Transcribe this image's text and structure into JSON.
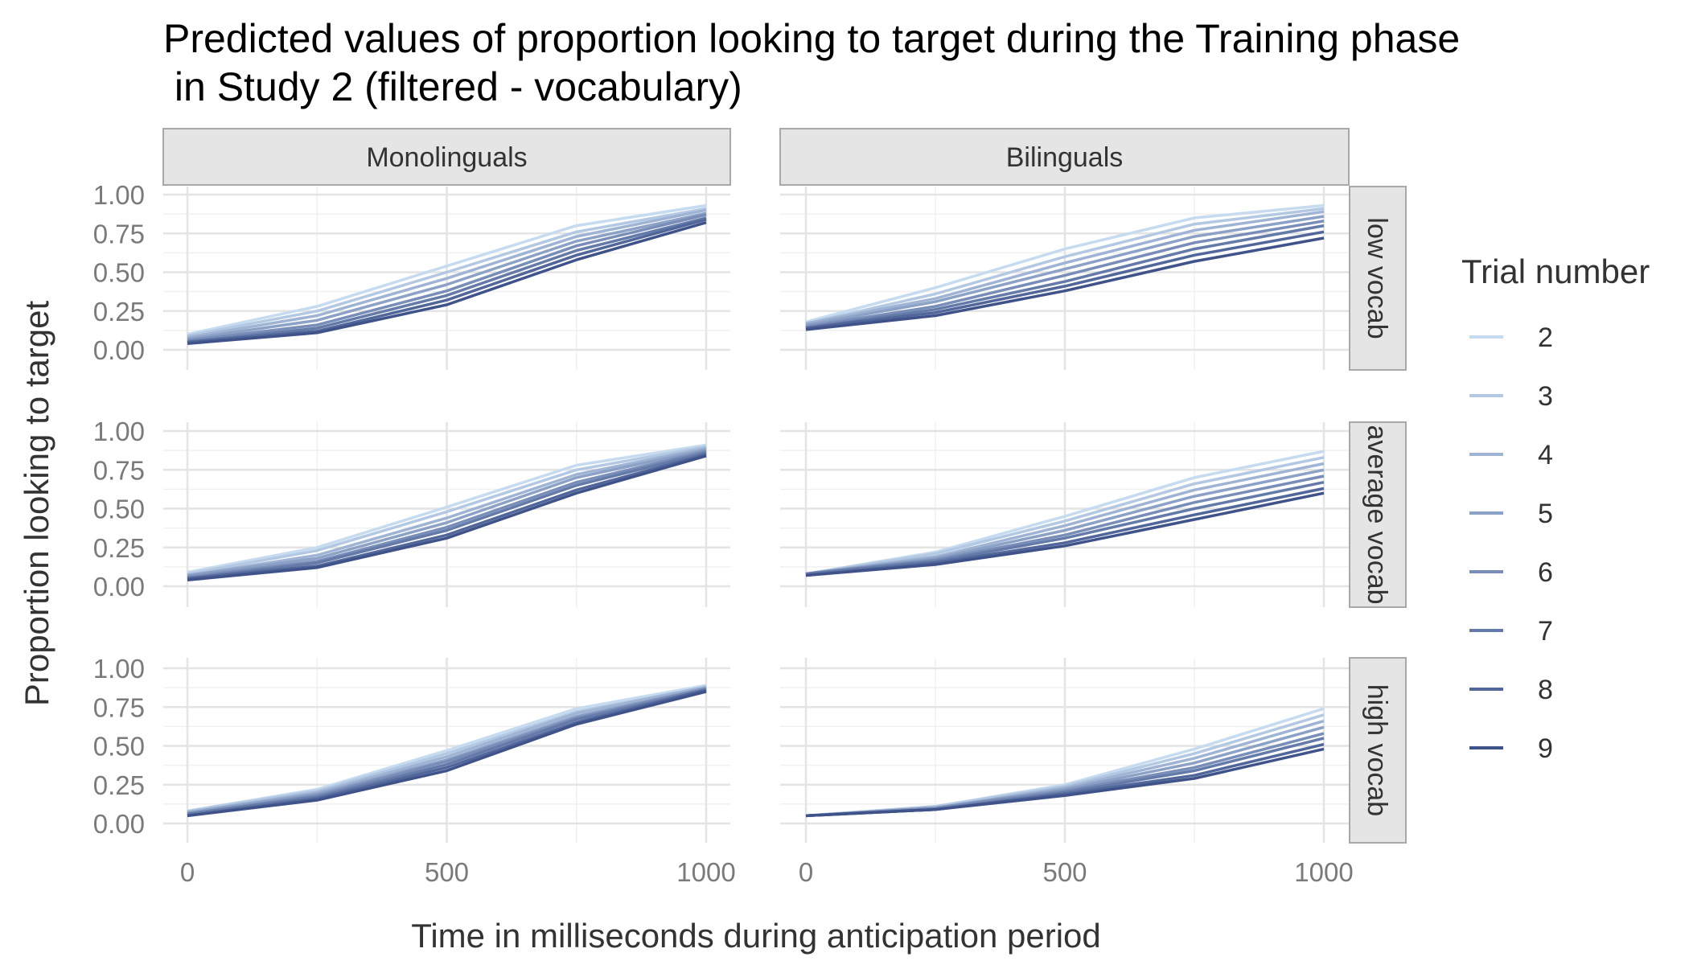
{
  "chart_data": {
    "type": "line",
    "title": "Predicted values of proportion looking to target during the Training phase\n in Study 2 (filtered - vocabulary)",
    "xlabel": "Time in milliseconds during anticipation period",
    "ylabel": "Proportion looking to target",
    "xlim": [
      0,
      1000
    ],
    "ylim": [
      0,
      1
    ],
    "x_ticks": [
      "0",
      "500",
      "1000"
    ],
    "y_ticks": [
      "0.00",
      "0.25",
      "0.50",
      "0.75",
      "1.00"
    ],
    "grid": true,
    "legend": {
      "title": "Trial number",
      "position": "right",
      "entries": [
        "2",
        "3",
        "4",
        "5",
        "6",
        "7",
        "8",
        "9"
      ],
      "colors": [
        "#c6dbef",
        "#b3c8e2",
        "#9fb4d4",
        "#8ca1c6",
        "#788db8",
        "#647aa9",
        "#51669a",
        "#3f538a"
      ]
    },
    "columns": [
      "Monolinguals",
      "Bilinguals"
    ],
    "rows": [
      "low vocab",
      "average vocab",
      "high vocab"
    ],
    "x": [
      0,
      250,
      500,
      750,
      1000
    ],
    "panels": [
      {
        "column": "Monolinguals",
        "row": "low vocab",
        "series": [
          {
            "name": "2",
            "values": [
              0.1,
              0.28,
              0.54,
              0.8,
              0.93
            ]
          },
          {
            "name": "3",
            "values": [
              0.09,
              0.25,
              0.5,
              0.76,
              0.91
            ]
          },
          {
            "name": "4",
            "values": [
              0.08,
              0.22,
              0.46,
              0.73,
              0.9
            ]
          },
          {
            "name": "5",
            "values": [
              0.07,
              0.19,
              0.42,
              0.7,
              0.88
            ]
          },
          {
            "name": "6",
            "values": [
              0.06,
              0.16,
              0.38,
              0.67,
              0.87
            ]
          },
          {
            "name": "7",
            "values": [
              0.05,
              0.14,
              0.35,
              0.64,
              0.85
            ]
          },
          {
            "name": "8",
            "values": [
              0.05,
              0.12,
              0.32,
              0.61,
              0.84
            ]
          },
          {
            "name": "9",
            "values": [
              0.04,
              0.11,
              0.29,
              0.58,
              0.82
            ]
          }
        ]
      },
      {
        "column": "Bilinguals",
        "row": "low vocab",
        "series": [
          {
            "name": "2",
            "values": [
              0.18,
              0.4,
              0.65,
              0.85,
              0.93
            ]
          },
          {
            "name": "3",
            "values": [
              0.17,
              0.36,
              0.6,
              0.81,
              0.91
            ]
          },
          {
            "name": "4",
            "values": [
              0.17,
              0.33,
              0.56,
              0.77,
              0.89
            ]
          },
          {
            "name": "5",
            "values": [
              0.16,
              0.31,
              0.52,
              0.73,
              0.86
            ]
          },
          {
            "name": "6",
            "values": [
              0.15,
              0.28,
              0.48,
              0.69,
              0.83
            ]
          },
          {
            "name": "7",
            "values": [
              0.14,
              0.26,
              0.44,
              0.65,
              0.8
            ]
          },
          {
            "name": "8",
            "values": [
              0.14,
              0.24,
              0.41,
              0.61,
              0.76
            ]
          },
          {
            "name": "9",
            "values": [
              0.13,
              0.22,
              0.38,
              0.57,
              0.72
            ]
          }
        ]
      },
      {
        "column": "Monolinguals",
        "row": "average vocab",
        "series": [
          {
            "name": "2",
            "values": [
              0.09,
              0.25,
              0.51,
              0.78,
              0.91
            ]
          },
          {
            "name": "3",
            "values": [
              0.08,
              0.23,
              0.48,
              0.75,
              0.9
            ]
          },
          {
            "name": "4",
            "values": [
              0.07,
              0.2,
              0.44,
              0.72,
              0.89
            ]
          },
          {
            "name": "5",
            "values": [
              0.07,
              0.18,
              0.41,
              0.7,
              0.88
            ]
          },
          {
            "name": "6",
            "values": [
              0.06,
              0.16,
              0.38,
              0.67,
              0.87
            ]
          },
          {
            "name": "7",
            "values": [
              0.05,
              0.15,
              0.36,
              0.65,
              0.86
            ]
          },
          {
            "name": "8",
            "values": [
              0.05,
              0.13,
              0.33,
              0.62,
              0.85
            ]
          },
          {
            "name": "9",
            "values": [
              0.04,
              0.12,
              0.31,
              0.6,
              0.84
            ]
          }
        ]
      },
      {
        "column": "Bilinguals",
        "row": "average vocab",
        "series": [
          {
            "name": "2",
            "values": [
              0.08,
              0.22,
              0.45,
              0.7,
              0.87
            ]
          },
          {
            "name": "3",
            "values": [
              0.08,
              0.21,
              0.42,
              0.66,
              0.83
            ]
          },
          {
            "name": "4",
            "values": [
              0.08,
              0.19,
              0.39,
              0.62,
              0.79
            ]
          },
          {
            "name": "5",
            "values": [
              0.08,
              0.18,
              0.36,
              0.58,
              0.75
            ]
          },
          {
            "name": "6",
            "values": [
              0.08,
              0.17,
              0.33,
              0.54,
              0.71
            ]
          },
          {
            "name": "7",
            "values": [
              0.08,
              0.16,
              0.31,
              0.5,
              0.67
            ]
          },
          {
            "name": "8",
            "values": [
              0.07,
              0.15,
              0.28,
              0.46,
              0.63
            ]
          },
          {
            "name": "9",
            "values": [
              0.07,
              0.14,
              0.26,
              0.43,
              0.6
            ]
          }
        ]
      },
      {
        "column": "Monolinguals",
        "row": "high vocab",
        "series": [
          {
            "name": "2",
            "values": [
              0.08,
              0.22,
              0.47,
              0.74,
              0.89
            ]
          },
          {
            "name": "3",
            "values": [
              0.08,
              0.21,
              0.45,
              0.72,
              0.88
            ]
          },
          {
            "name": "4",
            "values": [
              0.07,
              0.2,
              0.43,
              0.71,
              0.88
            ]
          },
          {
            "name": "5",
            "values": [
              0.07,
              0.19,
              0.41,
              0.69,
              0.87
            ]
          },
          {
            "name": "6",
            "values": [
              0.06,
              0.18,
              0.4,
              0.68,
              0.87
            ]
          },
          {
            "name": "7",
            "values": [
              0.06,
              0.17,
              0.38,
              0.67,
              0.86
            ]
          },
          {
            "name": "8",
            "values": [
              0.05,
              0.16,
              0.36,
              0.65,
              0.86
            ]
          },
          {
            "name": "9",
            "values": [
              0.05,
              0.15,
              0.34,
              0.64,
              0.85
            ]
          }
        ]
      },
      {
        "column": "Bilinguals",
        "row": "high vocab",
        "series": [
          {
            "name": "2",
            "values": [
              0.05,
              0.11,
              0.25,
              0.48,
              0.74
            ]
          },
          {
            "name": "3",
            "values": [
              0.05,
              0.11,
              0.24,
              0.45,
              0.7
            ]
          },
          {
            "name": "4",
            "values": [
              0.05,
              0.1,
              0.23,
              0.42,
              0.66
            ]
          },
          {
            "name": "5",
            "values": [
              0.05,
              0.1,
              0.22,
              0.39,
              0.62
            ]
          },
          {
            "name": "6",
            "values": [
              0.05,
              0.1,
              0.21,
              0.36,
              0.58
            ]
          },
          {
            "name": "7",
            "values": [
              0.05,
              0.09,
              0.2,
              0.34,
              0.55
            ]
          },
          {
            "name": "8",
            "values": [
              0.05,
              0.09,
              0.19,
              0.31,
              0.51
            ]
          },
          {
            "name": "9",
            "values": [
              0.05,
              0.09,
              0.18,
              0.29,
              0.48
            ]
          }
        ]
      }
    ]
  }
}
